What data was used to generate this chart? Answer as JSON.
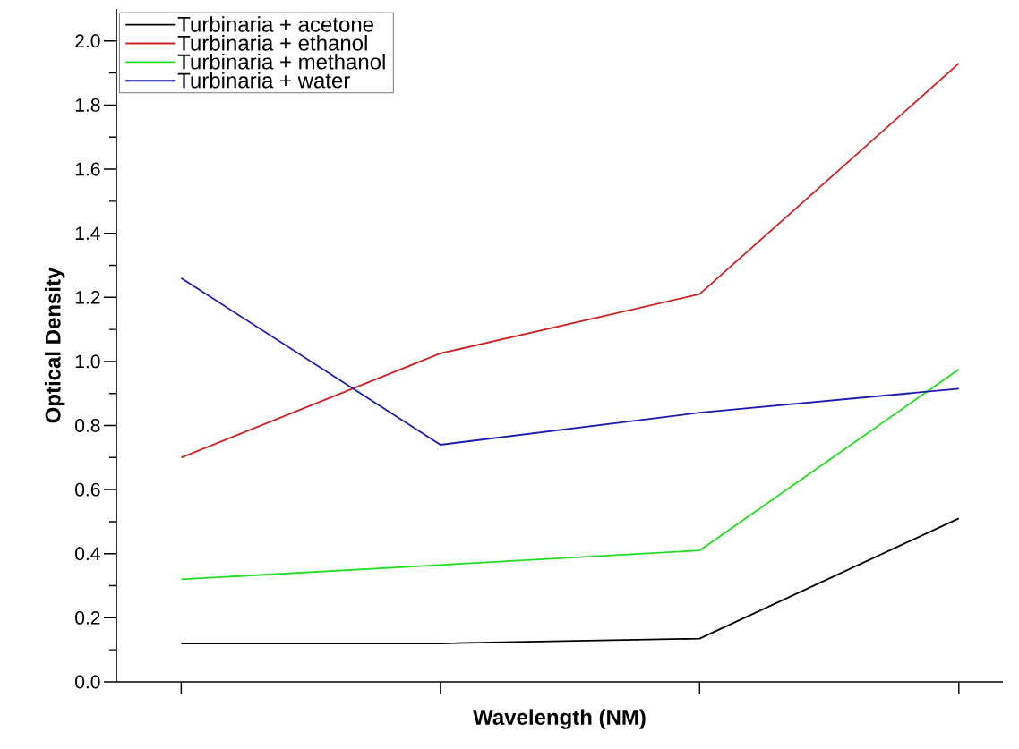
{
  "chart_data": {
    "type": "line",
    "xlabel": "Wavelength (NM)",
    "ylabel": "Optical Density",
    "categories": [
      null,
      null,
      null,
      null
    ],
    "series": [
      {
        "name": "Turbinaria + acetone",
        "color": "#000000",
        "values": [
          0.12,
          0.12,
          0.135,
          0.51
        ]
      },
      {
        "name": "Turbinaria + ethanol",
        "color": "#cc2222",
        "values": [
          0.7,
          1.025,
          1.21,
          1.93
        ]
      },
      {
        "name": "Turbinaria + methanol",
        "color": "#22dd22",
        "values": [
          0.32,
          0.365,
          0.41,
          0.975
        ]
      },
      {
        "name": "Turbinaria + water",
        "color": "#1a1ab0",
        "values": [
          1.26,
          0.74,
          0.84,
          0.915
        ]
      }
    ],
    "ylim": [
      0,
      2.1
    ],
    "yticks": [
      {
        "value": 0,
        "label": "0.0"
      },
      {
        "value": 0.2,
        "label": "0.2"
      },
      {
        "value": 0.4,
        "label": "0.4"
      },
      {
        "value": 0.6,
        "label": "0.6"
      },
      {
        "value": 0.8,
        "label": "0.8"
      },
      {
        "value": 1.0,
        "label": "1.0"
      },
      {
        "value": 1.2,
        "label": "1.2"
      },
      {
        "value": 1.4,
        "label": "1.4"
      },
      {
        "value": 1.6,
        "label": "1.6"
      },
      {
        "value": 1.8,
        "label": "1.8"
      },
      {
        "value": 2.0,
        "label": "2.0"
      }
    ],
    "tick_labels": "y",
    "legend": "top left",
    "marker": "none",
    "line_style": "solid"
  }
}
